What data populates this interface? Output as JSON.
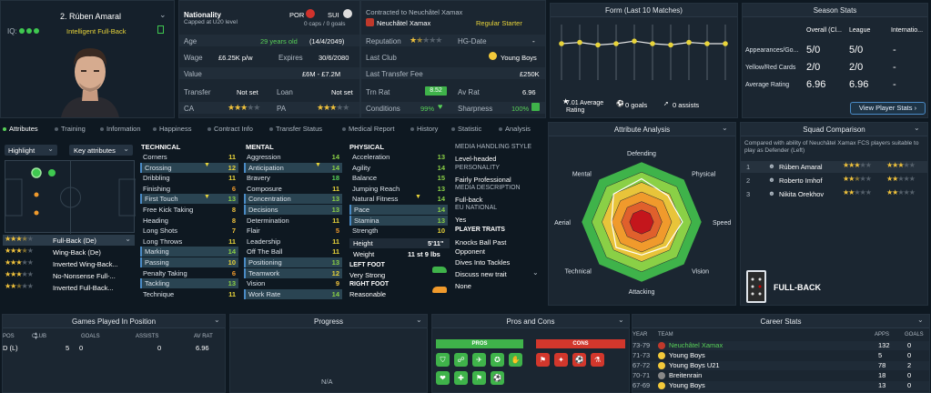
{
  "player": {
    "name": "2. Rúben Amaral",
    "iq": "IQ:",
    "role": "Intelligent Full-Back"
  },
  "info": {
    "nationality_label": "Nationality",
    "nationality_sub": "Capped at U20 level",
    "nat1": "POR",
    "nat2": "SUI",
    "caps": "0 caps / 0 goals",
    "age_label": "Age",
    "age": "29 years old",
    "dob": "(14/4/2049)",
    "wage_label": "Wage",
    "wage": "£6.25K p/w",
    "expires_label": "Expires",
    "expires": "30/6/2080",
    "value_label": "Value",
    "value": "£6M - £7.2M",
    "transfer_label": "Transfer",
    "transfer": "Not set",
    "loan_label": "Loan",
    "loan": "Not set",
    "ca_label": "CA",
    "pa_label": "PA",
    "contract_label": "Contracted to Neuchâtel Xamax",
    "club": "Neuchâtel Xamax",
    "status": "Regular Starter",
    "reputation_label": "Reputation",
    "hg_label": "HG-Date",
    "hg": "-",
    "last_club_label": "Last Club",
    "last_club": "Young Boys",
    "last_fee_label": "Last Transfer Fee",
    "last_fee": "£250K",
    "trn_label": "Trn Rat",
    "trn": "8.52",
    "av_label": "Av Rat",
    "av": "6.96",
    "cond_label": "Conditions",
    "cond": "99%",
    "sharp_label": "Sharpness",
    "sharp": "100%"
  },
  "form": {
    "title": "Form (Last 10 Matches)",
    "avg": "7.01 Average Rating",
    "goals": "0 goals",
    "assists": "0 assists",
    "values": [
      7.0,
      7.1,
      6.9,
      7.0,
      7.2,
      7.0,
      6.9,
      7.1,
      7.0,
      7.0
    ]
  },
  "season": {
    "title": "Season Stats",
    "cols": [
      "Overall (Cl...",
      "League",
      "Internatio..."
    ],
    "rows": [
      {
        "label": "Appearances/Go...",
        "a": "5/0",
        "b": "5/0",
        "c": "-"
      },
      {
        "label": "Yellow/Red Cards",
        "a": "2/0",
        "b": "2/0",
        "c": "-"
      },
      {
        "label": "Average Rating",
        "a": "6.96",
        "b": "6.96",
        "c": "-"
      }
    ],
    "button": "View Player Stats"
  },
  "tabs": [
    "Attributes",
    "Training",
    "Information",
    "Happiness",
    "Contract Info",
    "Transfer Status",
    "Medical Report",
    "History",
    "Statistic",
    "Analysis"
  ],
  "left": {
    "highlight": "Highlight",
    "key_attr": "Key attributes",
    "positions": [
      {
        "label": "Full-Back (De)",
        "stars": 3.5
      },
      {
        "label": "Wing-Back (De)",
        "stars": 3.5
      },
      {
        "label": "Inverted Wing-Back...",
        "stars": 3
      },
      {
        "label": "No-Nonsense Full-...",
        "stars": 3
      },
      {
        "label": "Inverted Full-Back...",
        "stars": 2.5
      }
    ]
  },
  "technical": {
    "title": "TECHNICAL",
    "items": [
      {
        "n": "Corners",
        "s": "11"
      },
      {
        "n": "Crossing",
        "s": "12"
      },
      {
        "n": "Dribbling",
        "s": "11"
      },
      {
        "n": "Finishing",
        "s": "6"
      },
      {
        "n": "First Touch",
        "s": "13"
      },
      {
        "n": "Free Kick Taking",
        "s": "8"
      },
      {
        "n": "Heading",
        "s": "8"
      },
      {
        "n": "Long Shots",
        "s": "7"
      },
      {
        "n": "Long Throws",
        "s": "11"
      },
      {
        "n": "Marking",
        "s": "14"
      },
      {
        "n": "Passing",
        "s": "10"
      },
      {
        "n": "Penalty Taking",
        "s": "6"
      },
      {
        "n": "Tackling",
        "s": "13"
      },
      {
        "n": "Technique",
        "s": "11"
      }
    ]
  },
  "mental": {
    "title": "MENTAL",
    "items": [
      {
        "n": "Aggression",
        "s": "14"
      },
      {
        "n": "Anticipation",
        "s": "14"
      },
      {
        "n": "Bravery",
        "s": "18"
      },
      {
        "n": "Composure",
        "s": "11"
      },
      {
        "n": "Concentration",
        "s": "13"
      },
      {
        "n": "Decisions",
        "s": "13"
      },
      {
        "n": "Determination",
        "s": "11"
      },
      {
        "n": "Flair",
        "s": "5"
      },
      {
        "n": "Leadership",
        "s": "11"
      },
      {
        "n": "Off The Ball",
        "s": "11"
      },
      {
        "n": "Positioning",
        "s": "13"
      },
      {
        "n": "Teamwork",
        "s": "12"
      },
      {
        "n": "Vision",
        "s": "9"
      },
      {
        "n": "Work Rate",
        "s": "14"
      }
    ]
  },
  "physical": {
    "title": "PHYSICAL",
    "items": [
      {
        "n": "Acceleration",
        "s": "13"
      },
      {
        "n": "Agility",
        "s": "14"
      },
      {
        "n": "Balance",
        "s": "15"
      },
      {
        "n": "Jumping Reach",
        "s": "13"
      },
      {
        "n": "Natural Fitness",
        "s": "14"
      },
      {
        "n": "Pace",
        "s": "14"
      },
      {
        "n": "Stamina",
        "s": "13"
      },
      {
        "n": "Strength",
        "s": "10"
      }
    ],
    "height_label": "Height",
    "height": "5'11\"",
    "weight_label": "Weight",
    "weight": "11 st 9 lbs",
    "left_foot_label": "LEFT FOOT",
    "left_foot": "Very Strong",
    "right_foot_label": "RIGHT FOOT",
    "right_foot": "Reasonable"
  },
  "media": {
    "h1": "MEDIA HANDLING STYLE",
    "v1": "Level-headed",
    "h2": "PERSONALITY",
    "v2": "Fairly Professional",
    "h3": "MEDIA DESCRIPTION",
    "v3": "Full-back",
    "h4": "EU NATIONAL",
    "v4": "Yes",
    "h5": "PLAYER TRAITS",
    "traits": [
      "Knocks Ball Past Opponent",
      "Dives Into Tackles",
      "Discuss new trait",
      "None"
    ]
  },
  "analysis": {
    "title": "Attribute Analysis",
    "labels": [
      "Defending",
      "Physical",
      "Speed",
      "Vision",
      "Attacking",
      "Technical",
      "Aerial",
      "Mental"
    ],
    "values": [
      0.72,
      0.62,
      0.68,
      0.58,
      0.55,
      0.6,
      0.5,
      0.66
    ]
  },
  "squad": {
    "title": "Squad Comparison",
    "desc": "Compared with ability of Neuchâtel Xamax FCS players suitable to play as Defender (Left)",
    "rows": [
      {
        "rank": "1",
        "name": "Rúben Amaral",
        "s1": 3,
        "s2": 3
      },
      {
        "rank": "2",
        "name": "Roberto Imhof",
        "s1": 2.5,
        "s2": 2
      },
      {
        "rank": "3",
        "name": "Nikita Orekhov",
        "s1": 2,
        "s2": 2
      }
    ],
    "pos": "FULL-BACK"
  },
  "games": {
    "title": "Games Played In Position",
    "cols": [
      "POS",
      "CLUB",
      "GOALS",
      "ASSISTS",
      "AV RAT"
    ],
    "row": [
      "D (L)",
      "5",
      "0",
      "0",
      "6.96"
    ]
  },
  "progress": {
    "title": "Progress",
    "na": "N/A"
  },
  "proscons": {
    "title": "Pros and Cons",
    "pros": "PROS",
    "cons": "CONS"
  },
  "career": {
    "title": "Career Stats",
    "cols": [
      "YEAR",
      "TEAM",
      "APPS",
      "GOALS"
    ],
    "rows": [
      {
        "year": "73-79",
        "team": "Neuchâtel Xamax",
        "apps": "132",
        "goals": "0"
      },
      {
        "year": "71-73",
        "team": "Young Boys",
        "apps": "5",
        "goals": "0"
      },
      {
        "year": "67-72",
        "team": "Young Boys U21",
        "apps": "78",
        "goals": "2"
      },
      {
        "year": "70-71",
        "team": "Breitenrain",
        "apps": "18",
        "goals": "0"
      },
      {
        "year": "67-69",
        "team": "Young Boys",
        "apps": "13",
        "goals": "0"
      }
    ]
  },
  "colors": {
    "accent": "#58d058",
    "gold": "#e8d43a",
    "blue": "#4a8bc6"
  }
}
